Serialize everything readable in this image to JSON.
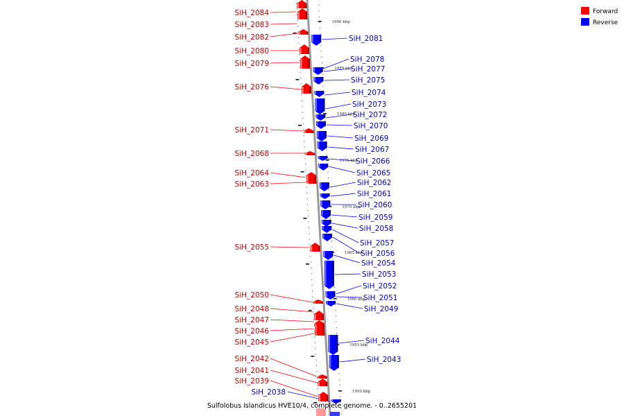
{
  "caption": "Sulfolobus islandicus HVE10/4, complete genome. - 0..2655201",
  "legend": [
    {
      "label": "Forward",
      "color": "#ff0000"
    },
    {
      "label": "Reverse",
      "color": "#0000ff"
    }
  ],
  "colors": {
    "forward": "#ff0000",
    "reverse": "#0000ff",
    "backbone": "#9a9a9a"
  },
  "ticks": [
    "1990 kbp",
    "1985 kbp",
    "1980 kbp",
    "1975 kbp",
    "1970 kbp",
    "1965 kbp",
    "1960 kbp",
    "1955 kbp",
    "1950 kbp"
  ],
  "forward_genes": [
    "SiH_2084",
    "SiH_2083",
    "SiH_2082",
    "SiH_2080",
    "SiH_2079",
    "SiH_2076",
    "SiH_2071",
    "SiH_2068",
    "SiH_2064",
    "SiH_2063",
    "SiH_2055",
    "SiH_2050",
    "SiH_2048",
    "SiH_2047",
    "SiH_2046",
    "SiH_2045",
    "SiH_2042",
    "SiH_2041",
    "SiH_2039"
  ],
  "reverse_genes": [
    "SiH_2081",
    "SiH_2078",
    "SiH_2077",
    "SiH_2075",
    "SiH_2074",
    "SiH_2073",
    "SiH_2072",
    "SiH_2070",
    "SiH_2069",
    "SiH_2067",
    "SiH_2066",
    "SiH_2065",
    "SiH_2062",
    "SiH_2061",
    "SiH_2060",
    "SiH_2059",
    "SiH_2058",
    "SiH_2057",
    "SiH_2056",
    "SiH_2054",
    "SiH_2053",
    "SiH_2052",
    "SiH_2051",
    "SiH_2049",
    "SiH_2044",
    "SiH_2043",
    "SiH_2038"
  ]
}
